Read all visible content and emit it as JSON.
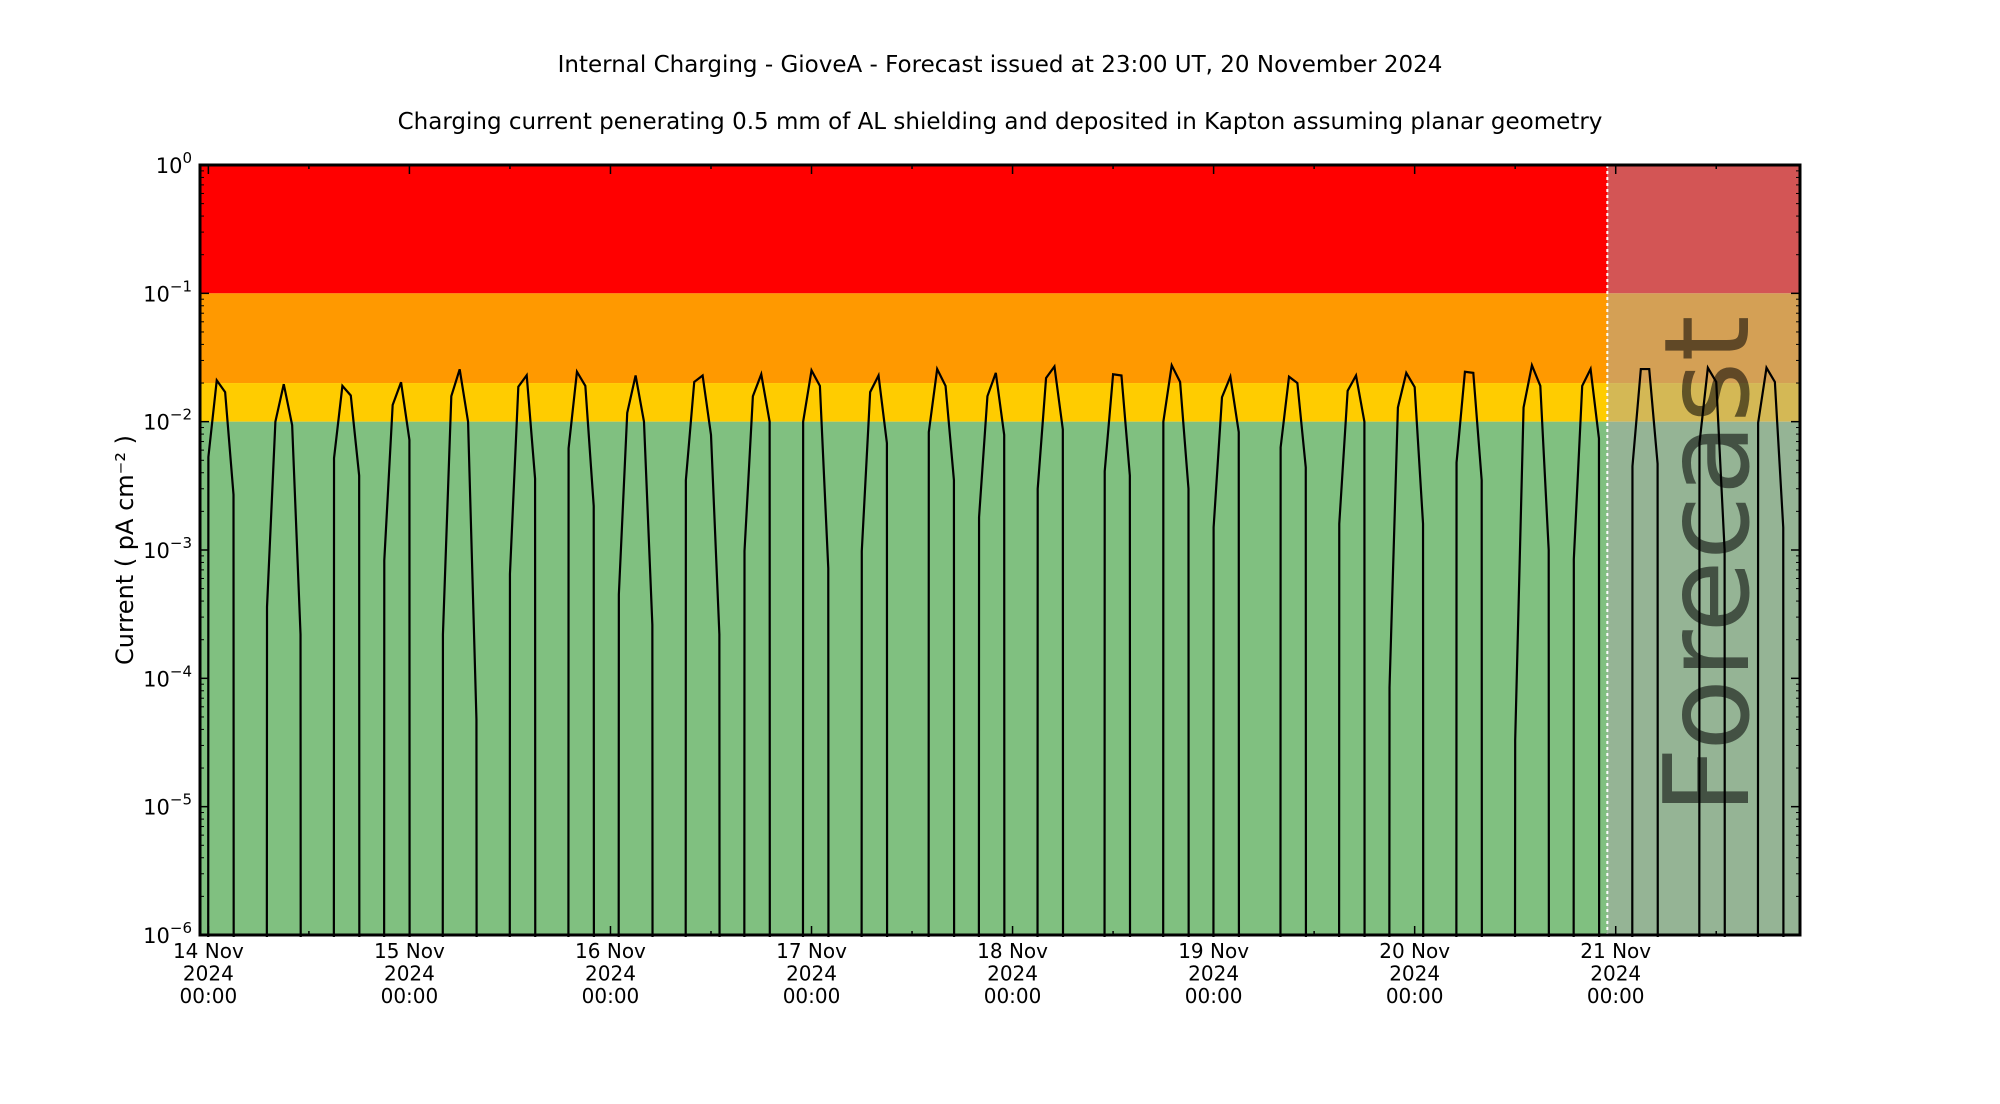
{
  "chart_data": {
    "type": "line",
    "title": "Internal Charging - GioveA - Forecast issued at 23:00 UT, 20 November 2024",
    "subtitle": "Charging current penerating 0.5 mm of AL shielding and deposited in Kapton assuming planar geometry",
    "ylabel": "Current ( pA cm⁻² )",
    "yscale": "log",
    "ylim": [
      1e-06,
      1
    ],
    "y_ticks": [
      {
        "value": 1,
        "base": "10",
        "exp": "0"
      },
      {
        "value": 0.1,
        "base": "10",
        "exp": "−1"
      },
      {
        "value": 0.01,
        "base": "10",
        "exp": "−2"
      },
      {
        "value": 0.001,
        "base": "10",
        "exp": "−3"
      },
      {
        "value": 0.0001,
        "base": "10",
        "exp": "−4"
      },
      {
        "value": 1e-05,
        "base": "10",
        "exp": "−5"
      },
      {
        "value": 1e-06,
        "base": "10",
        "exp": "−6"
      }
    ],
    "x_unit": "hours since 14 Nov 2024 00:00 UT",
    "xlim": [
      -1,
      190
    ],
    "x_ticks": [
      {
        "hour": 0,
        "lines": [
          "14 Nov",
          "2024",
          "00:00"
        ]
      },
      {
        "hour": 24,
        "lines": [
          "15 Nov",
          "2024",
          "00:00"
        ]
      },
      {
        "hour": 48,
        "lines": [
          "16 Nov",
          "2024",
          "00:00"
        ]
      },
      {
        "hour": 72,
        "lines": [
          "17 Nov",
          "2024",
          "00:00"
        ]
      },
      {
        "hour": 96,
        "lines": [
          "18 Nov",
          "2024",
          "00:00"
        ]
      },
      {
        "hour": 120,
        "lines": [
          "19 Nov",
          "2024",
          "00:00"
        ]
      },
      {
        "hour": 144,
        "lines": [
          "20 Nov",
          "2024",
          "00:00"
        ]
      },
      {
        "hour": 168,
        "lines": [
          "21 Nov",
          "2024",
          "00:00"
        ]
      }
    ],
    "bands": [
      {
        "name": "red",
        "from": 0.1,
        "to": 1,
        "color": "#ff0000",
        "forecast_color": "#d35555"
      },
      {
        "name": "orange",
        "from": 0.02,
        "to": 0.1,
        "color": "#ff9900",
        "forecast_color": "#d4a055"
      },
      {
        "name": "yellow",
        "from": 0.01,
        "to": 0.02,
        "color": "#ffcc00",
        "forecast_color": "#d4b855"
      },
      {
        "name": "green",
        "from": 1e-06,
        "to": 0.01,
        "color": "#80c080",
        "forecast_color": "#95b495"
      }
    ],
    "forecast_start_hour": 167,
    "forecast_label": "Forecast",
    "series_color": "#000000",
    "spikes": [
      {
        "start_hour": 0,
        "values": [
          0.0053,
          0.021,
          0.017,
          0.0027
        ]
      },
      {
        "start_hour": 7,
        "values": [
          0.00036,
          0.01,
          0.0196,
          0.0094,
          0.00022
        ]
      },
      {
        "start_hour": 15,
        "values": [
          0.0052,
          0.019,
          0.016,
          0.0038
        ]
      },
      {
        "start_hour": 21,
        "values": [
          0.00083,
          0.0135,
          0.0203,
          0.0072
        ]
      },
      {
        "start_hour": 28,
        "values": [
          0.00022,
          0.0158,
          0.0256,
          0.01,
          4.8e-05
        ]
      },
      {
        "start_hour": 36,
        "values": [
          0.00065,
          0.0187,
          0.023,
          0.0036
        ]
      },
      {
        "start_hour": 43,
        "values": [
          0.0062,
          0.0245,
          0.019,
          0.0022
        ]
      },
      {
        "start_hour": 49,
        "values": [
          0.00045,
          0.0117,
          0.0229,
          0.01,
          0.00026
        ]
      },
      {
        "start_hour": 57,
        "values": [
          0.0035,
          0.0204,
          0.0229,
          0.0079,
          0.00022
        ]
      },
      {
        "start_hour": 64,
        "values": [
          0.00098,
          0.0158,
          0.0234,
          0.01
        ]
      },
      {
        "start_hour": 71,
        "values": [
          0.01,
          0.0251,
          0.019,
          0.00072
        ]
      },
      {
        "start_hour": 78,
        "values": [
          0.00098,
          0.017,
          0.0229,
          0.0068
        ]
      },
      {
        "start_hour": 86,
        "values": [
          0.0083,
          0.0257,
          0.019,
          0.0035
        ]
      },
      {
        "start_hour": 92,
        "values": [
          0.0018,
          0.0158,
          0.024,
          0.0079
        ]
      },
      {
        "start_hour": 99,
        "values": [
          0.003,
          0.0219,
          0.0269,
          0.0087
        ]
      },
      {
        "start_hour": 107,
        "values": [
          0.0041,
          0.0234,
          0.0229,
          0.0038
        ]
      },
      {
        "start_hour": 114,
        "values": [
          0.01,
          0.0275,
          0.0204,
          0.003
        ]
      },
      {
        "start_hour": 120,
        "values": [
          0.0015,
          0.0155,
          0.0224,
          0.0083
        ]
      },
      {
        "start_hour": 128,
        "values": [
          0.0063,
          0.0224,
          0.02,
          0.0044
        ]
      },
      {
        "start_hour": 135,
        "values": [
          0.0016,
          0.0174,
          0.0229,
          0.01
        ]
      },
      {
        "start_hour": 141,
        "values": [
          8.5e-05,
          0.0129,
          0.024,
          0.0186,
          0.0016
        ]
      },
      {
        "start_hour": 149,
        "values": [
          0.0048,
          0.0245,
          0.024,
          0.0035
        ]
      },
      {
        "start_hour": 156,
        "values": [
          3.3e-05,
          0.0129,
          0.0275,
          0.019,
          0.001
        ]
      },
      {
        "start_hour": 163,
        "values": [
          0.00085,
          0.019,
          0.0257,
          0.0074
        ]
      },
      {
        "start_hour": 170,
        "values": [
          0.0045,
          0.0257,
          0.0257,
          0.0047
        ]
      },
      {
        "start_hour": 178,
        "values": [
          0.0068,
          0.0263,
          0.0204,
          0.001
        ]
      },
      {
        "start_hour": 185,
        "values": [
          0.0098,
          0.0263,
          0.0204,
          0.0015
        ]
      }
    ]
  }
}
